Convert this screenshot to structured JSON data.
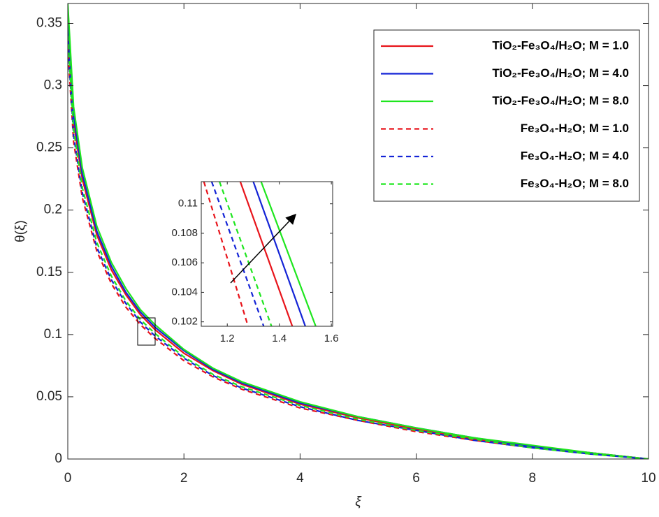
{
  "chart_data": [
    {
      "type": "line",
      "xlabel": "ξ",
      "ylabel": "θ(ξ)",
      "x": [
        0,
        0.1,
        0.25,
        0.5,
        0.75,
        1,
        1.25,
        1.5,
        2,
        2.5,
        3,
        4,
        5,
        6,
        7,
        8,
        9,
        10
      ],
      "xlim": [
        0,
        10
      ],
      "ylim": [
        0,
        0.366
      ],
      "xticks": [
        0,
        2,
        4,
        6,
        8,
        10
      ],
      "yticks": [
        0,
        0.05,
        0.1,
        0.15,
        0.2,
        0.25,
        0.3,
        0.35
      ],
      "legend": "upper right",
      "series": [
        {
          "name": "TiO₂-Fe₃O₄/H₂O; M = 1.0",
          "color": "#e8141b",
          "style": "solid",
          "values": [
            0.342,
            0.27,
            0.225,
            0.18,
            0.152,
            0.132,
            0.116,
            0.104,
            0.085,
            0.071,
            0.06,
            0.044,
            0.033,
            0.024,
            0.016,
            0.01,
            0.005,
            0
          ]
        },
        {
          "name": "TiO₂-Fe₃O₄/H₂O; M = 4.0",
          "color": "#1424d6",
          "style": "solid",
          "values": [
            0.352,
            0.276,
            0.229,
            0.183,
            0.155,
            0.134,
            0.118,
            0.106,
            0.087,
            0.072,
            0.061,
            0.045,
            0.034,
            0.025,
            0.017,
            0.01,
            0.005,
            0
          ]
        },
        {
          "name": "TiO₂-Fe₃O₄/H₂O; M = 8.0",
          "color": "#1ee61e",
          "style": "solid",
          "values": [
            0.366,
            0.283,
            0.234,
            0.187,
            0.158,
            0.137,
            0.12,
            0.108,
            0.088,
            0.073,
            0.062,
            0.046,
            0.034,
            0.025,
            0.017,
            0.011,
            0.005,
            0
          ]
        },
        {
          "name": "Fe₃O₄-H₂O; M = 1.0",
          "color": "#e8141b",
          "style": "dashed",
          "values": [
            0.33,
            0.255,
            0.21,
            0.167,
            0.141,
            0.122,
            0.108,
            0.097,
            0.079,
            0.066,
            0.056,
            0.041,
            0.031,
            0.022,
            0.015,
            0.009,
            0.004,
            0
          ]
        },
        {
          "name": "Fe₃O₄-H₂O; M = 4.0",
          "color": "#1424d6",
          "style": "dashed",
          "values": [
            0.335,
            0.26,
            0.214,
            0.17,
            0.144,
            0.125,
            0.11,
            0.099,
            0.081,
            0.067,
            0.057,
            0.042,
            0.031,
            0.023,
            0.015,
            0.009,
            0.004,
            0
          ]
        },
        {
          "name": "Fe₃O₄-H₂O; M = 8.0",
          "color": "#1ee61e",
          "style": "dashed",
          "values": [
            0.34,
            0.265,
            0.218,
            0.174,
            0.147,
            0.127,
            0.112,
            0.101,
            0.082,
            0.068,
            0.058,
            0.043,
            0.032,
            0.023,
            0.016,
            0.009,
            0.004,
            0
          ]
        }
      ]
    },
    {
      "type": "line",
      "xlim": [
        1.1,
        1.605
      ],
      "ylim": [
        0.1017,
        0.1115
      ],
      "xticks": [
        1.2,
        1.4,
        1.6
      ],
      "yticks": [
        0.102,
        0.104,
        0.106,
        0.108,
        0.11
      ],
      "series": [
        {
          "color": "#e8141b",
          "style": "solid",
          "x": [
            1.25,
            1.45
          ],
          "values": [
            0.1115,
            0.1017
          ]
        },
        {
          "color": "#1424d6",
          "style": "solid",
          "x": [
            1.3,
            1.5
          ],
          "values": [
            0.1115,
            0.1017
          ]
        },
        {
          "color": "#1ee61e",
          "style": "solid",
          "x": [
            1.33,
            1.54
          ],
          "values": [
            0.1115,
            0.1017
          ]
        },
        {
          "color": "#e8141b",
          "style": "dashed",
          "x": [
            1.11,
            1.28
          ],
          "values": [
            0.1115,
            0.1017
          ]
        },
        {
          "color": "#1424d6",
          "style": "dashed",
          "x": [
            1.14,
            1.34
          ],
          "values": [
            0.1115,
            0.1017
          ]
        },
        {
          "color": "#1ee61e",
          "style": "dashed",
          "x": [
            1.17,
            1.37
          ],
          "values": [
            0.1115,
            0.1017
          ]
        }
      ]
    }
  ]
}
